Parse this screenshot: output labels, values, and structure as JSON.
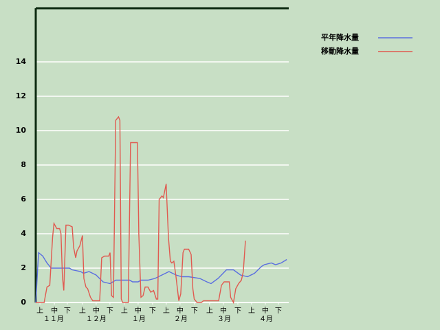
{
  "chart_data": {
    "type": "line",
    "xlim": [
      0,
      180.4
    ],
    "ylim": [
      0,
      17.12
    ],
    "yticks": [
      0,
      2,
      4,
      6,
      8,
      10,
      12,
      14
    ],
    "grid": true,
    "legend": "top-right",
    "xticks": [
      {
        "value": 3,
        "label": "上"
      },
      {
        "value": 13.3,
        "label": "中"
      },
      {
        "value": 22.5,
        "label": "下"
      },
      {
        "value": 33.3,
        "label": "上"
      },
      {
        "value": 43.1,
        "label": "中"
      },
      {
        "value": 52.9,
        "label": "下"
      },
      {
        "value": 63.2,
        "label": "上"
      },
      {
        "value": 73,
        "label": "中"
      },
      {
        "value": 83.3,
        "label": "下"
      },
      {
        "value": 93.1,
        "label": "上"
      },
      {
        "value": 102.9,
        "label": "中"
      },
      {
        "value": 113.2,
        "label": "下"
      },
      {
        "value": 124,
        "label": "上"
      },
      {
        "value": 133.8,
        "label": "中"
      },
      {
        "value": 144.1,
        "label": "下"
      },
      {
        "value": 153.9,
        "label": "上"
      },
      {
        "value": 163.7,
        "label": "中"
      },
      {
        "value": 173,
        "label": "下"
      }
    ],
    "month_labels": [
      {
        "value": 12.7,
        "label": "１１月"
      },
      {
        "value": 43.1,
        "label": "１２月"
      },
      {
        "value": 73.5,
        "label": "１月"
      },
      {
        "value": 103.4,
        "label": "２月"
      },
      {
        "value": 134.3,
        "label": "３月"
      },
      {
        "value": 164.2,
        "label": "４月"
      }
    ],
    "series": [
      {
        "name": "平年降水量",
        "color": "#5a6ee0",
        "x": [
          0,
          2,
          5,
          8,
          11,
          24,
          26,
          32,
          34,
          38,
          43,
          48,
          53,
          57,
          67,
          69,
          73,
          75,
          80,
          85,
          90,
          95,
          100,
          104,
          109,
          117,
          122,
          125,
          130,
          136,
          141,
          146,
          151,
          156,
          161,
          163,
          168,
          171,
          175,
          179
        ],
        "values": [
          0,
          2.9,
          2.7,
          2.3,
          2.0,
          2.0,
          1.9,
          1.8,
          1.7,
          1.8,
          1.6,
          1.2,
          1.1,
          1.3,
          1.3,
          1.2,
          1.2,
          1.3,
          1.3,
          1.4,
          1.6,
          1.8,
          1.6,
          1.5,
          1.5,
          1.4,
          1.2,
          1.1,
          1.4,
          1.9,
          1.9,
          1.6,
          1.5,
          1.7,
          2.1,
          2.2,
          2.3,
          2.2,
          2.3,
          2.5
        ]
      },
      {
        "name": "移動降水量",
        "color": "#e05a50",
        "x": [
          0,
          6,
          8,
          10,
          12,
          13,
          15,
          17,
          18,
          19,
          20,
          21.5,
          23.5,
          26,
          27,
          28.5,
          29.4,
          31.4,
          33.3,
          34.3,
          35.8,
          37,
          39,
          40.7,
          45.6,
          47,
          49,
          52,
          53,
          54,
          55.4,
          57,
          59,
          60,
          61,
          62,
          66,
          67.6,
          72.5,
          73.5,
          75,
          76.5,
          78,
          80,
          82,
          84,
          86,
          87,
          88,
          90,
          91,
          93,
          94.6,
          96,
          97,
          98.5,
          100,
          102,
          103.4,
          105,
          106,
          109,
          110.8,
          112,
          113,
          115,
          118,
          119.6,
          121.6,
          130.4,
          132.4,
          134.3,
          138,
          139,
          141,
          142.6,
          144.6,
          146.6,
          148,
          149.5
        ],
        "values": [
          0,
          0,
          0.9,
          1.0,
          3.8,
          4.6,
          4.3,
          4.3,
          4.0,
          1.5,
          0.7,
          4.5,
          4.5,
          4.4,
          3.2,
          2.6,
          3.0,
          3.3,
          3.9,
          1.4,
          0.9,
          0.8,
          0.3,
          0.1,
          0.1,
          2.6,
          2.7,
          2.7,
          2.9,
          0.4,
          0.3,
          10.6,
          10.8,
          10.6,
          0.2,
          0,
          0,
          9.3,
          9.3,
          4,
          0.3,
          0.4,
          0.9,
          0.9,
          0.6,
          0.7,
          0.2,
          0.2,
          6.0,
          6.2,
          6.1,
          6.9,
          3.8,
          2.4,
          2.3,
          2.4,
          1.5,
          0.1,
          0.5,
          2.9,
          3.1,
          3.1,
          2.8,
          0.8,
          0.2,
          0,
          0,
          0.1,
          0.1,
          0.1,
          1.0,
          1.2,
          1.2,
          0.3,
          0,
          0.8,
          1.1,
          1.3,
          1.8,
          3.6
        ]
      }
    ]
  }
}
